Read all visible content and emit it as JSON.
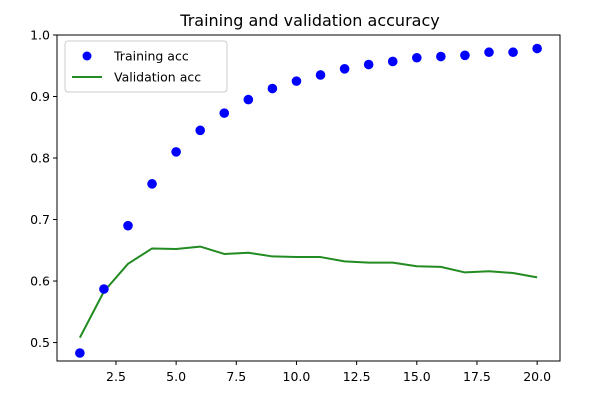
{
  "chart_data": {
    "type": "scatter+line",
    "title": "Training and validation accuracy",
    "xlabel": "",
    "ylabel": "",
    "xlim": [
      0.05,
      20.95
    ],
    "ylim": [
      0.47,
      1.0
    ],
    "xticks": [
      2.5,
      5.0,
      7.5,
      10.0,
      12.5,
      15.0,
      17.5,
      20.0
    ],
    "xtick_labels": [
      "2.5",
      "5.0",
      "7.5",
      "10.0",
      "12.5",
      "15.0",
      "17.5",
      "20.0"
    ],
    "yticks": [
      0.5,
      0.6,
      0.7,
      0.8,
      0.9,
      1.0
    ],
    "ytick_labels": [
      "0.5",
      "0.6",
      "0.7",
      "0.8",
      "0.9",
      "1.0"
    ],
    "grid": false,
    "legend_position": "upper-left",
    "x": [
      1,
      2,
      3,
      4,
      5,
      6,
      7,
      8,
      9,
      10,
      11,
      12,
      13,
      14,
      15,
      16,
      17,
      18,
      19,
      20
    ],
    "series": [
      {
        "name": "Training acc",
        "kind": "scatter",
        "color": "#0000ff",
        "values": [
          0.483,
          0.587,
          0.69,
          0.758,
          0.81,
          0.845,
          0.873,
          0.895,
          0.913,
          0.925,
          0.935,
          0.945,
          0.952,
          0.957,
          0.963,
          0.965,
          0.967,
          0.972,
          0.972,
          0.978
        ]
      },
      {
        "name": "Validation acc",
        "kind": "line",
        "color": "#228b22",
        "values": [
          0.508,
          0.583,
          0.628,
          0.653,
          0.652,
          0.656,
          0.644,
          0.646,
          0.64,
          0.639,
          0.639,
          0.632,
          0.63,
          0.63,
          0.624,
          0.623,
          0.614,
          0.616,
          0.613,
          0.606
        ]
      }
    ]
  }
}
